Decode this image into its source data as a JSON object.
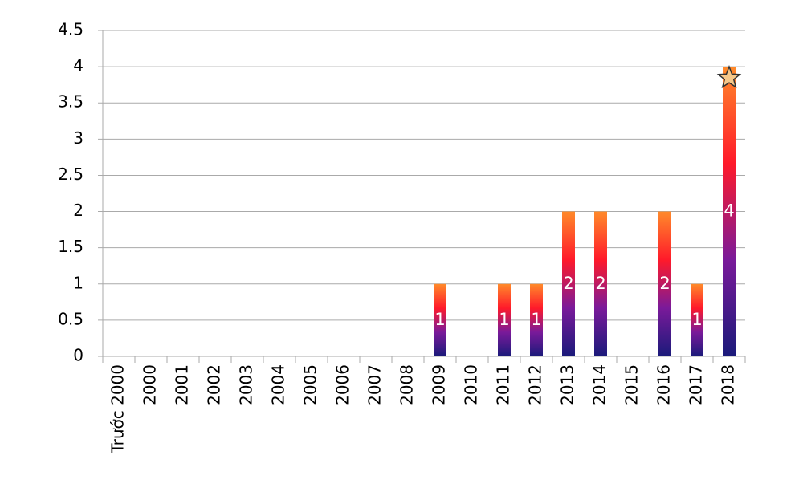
{
  "chart_data": {
    "type": "bar",
    "categories": [
      "Trước 2000",
      "2000",
      "2001",
      "2002",
      "2003",
      "2004",
      "2005",
      "2006",
      "2007",
      "2008",
      "2009",
      "2010",
      "2011",
      "2012",
      "2013",
      "2014",
      "2015",
      "2016",
      "2017",
      "2018"
    ],
    "values": [
      0,
      0,
      0,
      0,
      0,
      0,
      0,
      0,
      0,
      0,
      1,
      0,
      1,
      1,
      2,
      2,
      0,
      2,
      1,
      4
    ],
    "colors": [
      "#1a1a7a",
      "#7a1a9a",
      "#ff1a2a",
      "#ff8a2a"
    ],
    "ylim": [
      0,
      4.5
    ],
    "yticks": [
      0,
      0.5,
      1,
      1.5,
      2,
      2.5,
      3,
      3.5,
      4,
      4.5
    ],
    "grid": true
  }
}
